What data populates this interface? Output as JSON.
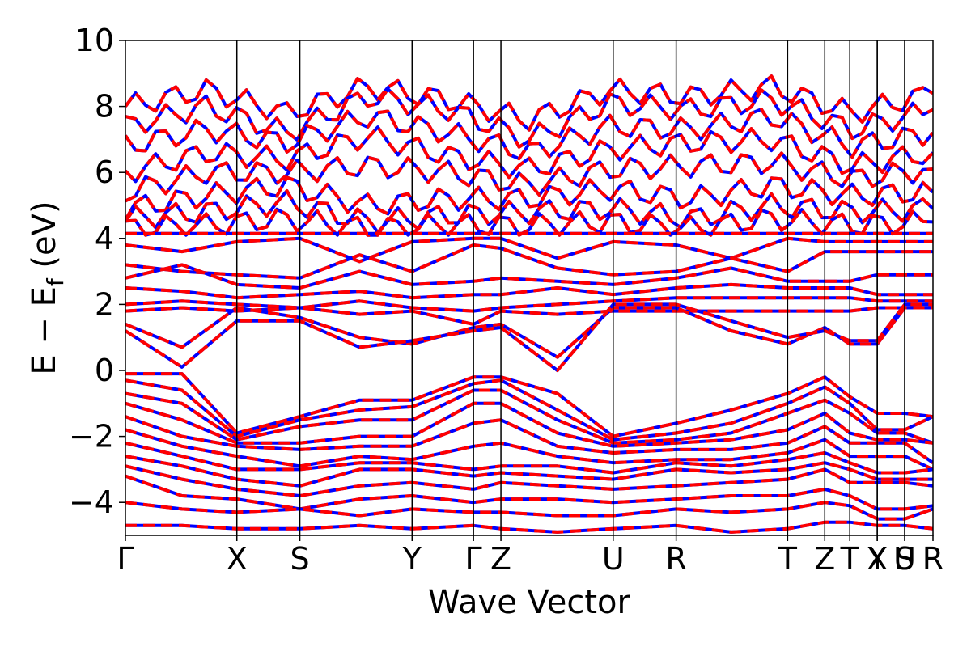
{
  "chart_data": {
    "type": "line",
    "xlabel": "Wave Vector",
    "ylabel_main": "E − E",
    "ylabel_sub": "f",
    "ylabel_unit": " (eV)",
    "ylim": [
      -5,
      10
    ],
    "yticks": [
      -4,
      -2,
      0,
      2,
      4,
      6,
      8,
      10
    ],
    "ytick_labels": [
      "−4",
      "−2",
      "0",
      "2",
      "4",
      "6",
      "8",
      "10"
    ],
    "xlim": [
      0,
      1
    ],
    "kpoints": [
      {
        "label": "Γ",
        "x": 0.0
      },
      {
        "label": "X",
        "x": 0.138
      },
      {
        "label": "S",
        "x": 0.216
      },
      {
        "label": "Y",
        "x": 0.355
      },
      {
        "label": "Γ",
        "x": 0.431
      },
      {
        "label": "Z",
        "x": 0.465
      },
      {
        "label": "U",
        "x": 0.604
      },
      {
        "label": "R",
        "x": 0.682
      },
      {
        "label": "T",
        "x": 0.82
      },
      {
        "label": "Z",
        "x": 0.866
      },
      {
        "label": "T",
        "x": 0.897
      },
      {
        "label": "Y",
        "x": 0.931
      },
      {
        "label": "X",
        "x": 0.931
      },
      {
        "label": "U",
        "x": 0.965
      },
      {
        "label": "S",
        "x": 0.965
      },
      {
        "label": "R",
        "x": 1.0
      }
    ],
    "series_styles": [
      {
        "color": "#0000ff",
        "dash": "solid",
        "width": 4
      },
      {
        "color": "#ff0000",
        "dash": "dashed",
        "width": 4
      }
    ],
    "conduction_top_bands": [
      [
        8.0,
        8.5,
        7.8,
        8.6,
        8.2,
        7.6,
        8.5,
        8.3,
        8.6,
        7.8,
        8.4
      ],
      [
        7.4,
        8.0,
        7.2,
        8.3,
        7.9,
        7.0,
        8.1,
        7.9,
        8.2,
        7.3,
        7.9
      ],
      [
        6.8,
        7.3,
        6.9,
        7.7,
        7.2,
        6.6,
        7.4,
        7.3,
        7.7,
        6.8,
        7.2
      ],
      [
        6.0,
        6.6,
        6.4,
        7.1,
        6.5,
        6.1,
        6.7,
        6.9,
        7.0,
        6.2,
        6.6
      ],
      [
        5.4,
        6.0,
        6.0,
        6.2,
        6.0,
        5.6,
        6.1,
        6.2,
        6.3,
        5.8,
        6.1
      ],
      [
        4.9,
        5.3,
        5.6,
        5.0,
        5.2,
        5.2,
        5.5,
        5.2,
        5.6,
        5.3,
        5.4
      ],
      [
        4.6,
        4.8,
        5.1,
        4.5,
        4.7,
        4.8,
        4.9,
        4.6,
        5.0,
        4.8,
        4.9
      ],
      [
        4.3,
        4.4,
        4.6,
        4.3,
        4.4,
        4.4,
        4.5,
        4.3,
        4.6,
        4.4,
        4.5
      ]
    ],
    "flat_band": [
      4.15,
      4.15,
      4.15,
      4.15,
      4.15,
      4.15,
      4.15,
      4.15,
      4.15,
      4.15,
      4.15
    ],
    "bands_x": [
      0.0,
      0.07,
      0.138,
      0.216,
      0.29,
      0.355,
      0.431,
      0.465,
      0.535,
      0.604,
      0.682,
      0.75,
      0.82,
      0.866,
      0.897,
      0.931,
      0.965,
      1.0
    ],
    "bands": [
      [
        3.8,
        3.6,
        3.9,
        4.0,
        3.3,
        3.9,
        4.0,
        4.0,
        3.4,
        3.9,
        3.8,
        3.4,
        4.0,
        3.9,
        3.9,
        3.9,
        3.9,
        3.9
      ],
      [
        3.2,
        3.0,
        2.9,
        2.8,
        3.5,
        3.0,
        3.8,
        3.7,
        3.1,
        2.9,
        3.0,
        3.4,
        3.0,
        3.6,
        3.6,
        3.6,
        3.6,
        3.6
      ],
      [
        2.8,
        3.2,
        2.6,
        2.5,
        3.0,
        2.6,
        2.7,
        2.8,
        2.7,
        2.6,
        2.8,
        3.1,
        2.7,
        2.7,
        2.7,
        2.9,
        2.9,
        2.9
      ],
      [
        2.5,
        2.4,
        2.2,
        2.3,
        2.4,
        2.2,
        2.3,
        2.3,
        2.5,
        2.3,
        2.5,
        2.6,
        2.5,
        2.5,
        2.5,
        2.3,
        2.3,
        2.3
      ],
      [
        2.0,
        2.1,
        2.0,
        1.9,
        2.1,
        1.9,
        1.8,
        1.9,
        2.0,
        2.1,
        2.2,
        2.2,
        2.2,
        2.2,
        2.2,
        2.1,
        2.1,
        2.1
      ],
      [
        1.8,
        1.9,
        1.8,
        1.9,
        1.7,
        1.8,
        1.4,
        1.8,
        1.7,
        1.8,
        1.8,
        1.8,
        1.8,
        1.8,
        1.8,
        1.9,
        1.9,
        1.9
      ],
      [
        1.4,
        0.7,
        1.9,
        1.6,
        1.0,
        0.8,
        1.3,
        1.4,
        0.4,
        1.9,
        1.9,
        1.2,
        0.8,
        1.3,
        0.8,
        0.8,
        1.9,
        1.9
      ],
      [
        1.2,
        0.1,
        1.5,
        1.5,
        0.7,
        0.9,
        1.2,
        1.3,
        0.0,
        2.0,
        2.0,
        1.5,
        1.0,
        1.2,
        0.9,
        0.9,
        2.0,
        2.0
      ],
      [
        -0.1,
        -0.1,
        -1.9,
        -1.4,
        -0.9,
        -0.9,
        -0.2,
        -0.2,
        -0.7,
        -2.0,
        -1.6,
        -1.2,
        -0.7,
        -0.2,
        -0.8,
        -1.3,
        -1.3,
        -1.4
      ],
      [
        -0.3,
        -0.6,
        -2.0,
        -1.5,
        -1.2,
        -1.1,
        -0.4,
        -0.3,
        -1.2,
        -2.1,
        -1.9,
        -1.6,
        -1.0,
        -0.5,
        -1.0,
        -1.8,
        -1.8,
        -1.4
      ],
      [
        -0.7,
        -1.0,
        -2.1,
        -1.7,
        -1.5,
        -1.5,
        -0.6,
        -0.6,
        -1.5,
        -2.2,
        -2.1,
        -1.9,
        -1.3,
        -0.9,
        -1.3,
        -1.9,
        -1.9,
        -2.2
      ],
      [
        -1.0,
        -1.5,
        -2.2,
        -2.2,
        -2.0,
        -2.0,
        -1.0,
        -1.0,
        -1.9,
        -2.3,
        -2.2,
        -2.1,
        -1.8,
        -1.3,
        -1.9,
        -2.1,
        -2.1,
        -2.2
      ],
      [
        -1.4,
        -2.0,
        -2.3,
        -2.4,
        -2.3,
        -2.3,
        -1.6,
        -1.5,
        -2.3,
        -2.5,
        -2.4,
        -2.4,
        -2.2,
        -1.7,
        -2.2,
        -2.2,
        -2.2,
        -2.8
      ],
      [
        -1.8,
        -2.3,
        -2.6,
        -2.9,
        -2.6,
        -2.7,
        -2.3,
        -2.2,
        -2.6,
        -2.8,
        -2.7,
        -2.7,
        -2.5,
        -2.1,
        -2.6,
        -2.6,
        -2.6,
        -3.0
      ],
      [
        -2.2,
        -2.6,
        -3.0,
        -3.0,
        -2.8,
        -2.8,
        -3.0,
        -2.9,
        -2.9,
        -3.1,
        -2.8,
        -2.9,
        -2.7,
        -2.5,
        -2.8,
        -3.1,
        -3.1,
        -3.0
      ],
      [
        -2.6,
        -2.9,
        -3.3,
        -3.5,
        -3.0,
        -3.0,
        -3.2,
        -3.1,
        -3.2,
        -3.3,
        -3.0,
        -3.1,
        -3.0,
        -2.8,
        -3.0,
        -3.3,
        -3.3,
        -3.3
      ],
      [
        -2.9,
        -3.3,
        -3.6,
        -3.8,
        -3.5,
        -3.4,
        -3.6,
        -3.4,
        -3.5,
        -3.6,
        -3.5,
        -3.4,
        -3.3,
        -3.0,
        -3.4,
        -3.4,
        -3.4,
        -3.5
      ],
      [
        -3.2,
        -3.8,
        -3.9,
        -4.2,
        -3.9,
        -3.8,
        -4.0,
        -3.9,
        -3.9,
        -4.0,
        -3.9,
        -3.8,
        -3.8,
        -3.6,
        -3.8,
        -4.2,
        -4.2,
        -4.1
      ],
      [
        -4.0,
        -4.2,
        -4.3,
        -4.2,
        -4.4,
        -4.2,
        -4.3,
        -4.3,
        -4.4,
        -4.4,
        -4.2,
        -4.3,
        -4.2,
        -4.0,
        -4.1,
        -4.5,
        -4.5,
        -4.2
      ],
      [
        -4.7,
        -4.7,
        -4.8,
        -4.8,
        -4.7,
        -4.8,
        -4.7,
        -4.8,
        -4.9,
        -4.8,
        -4.7,
        -4.9,
        -4.8,
        -4.6,
        -4.6,
        -4.7,
        -4.7,
        -4.8
      ]
    ]
  }
}
